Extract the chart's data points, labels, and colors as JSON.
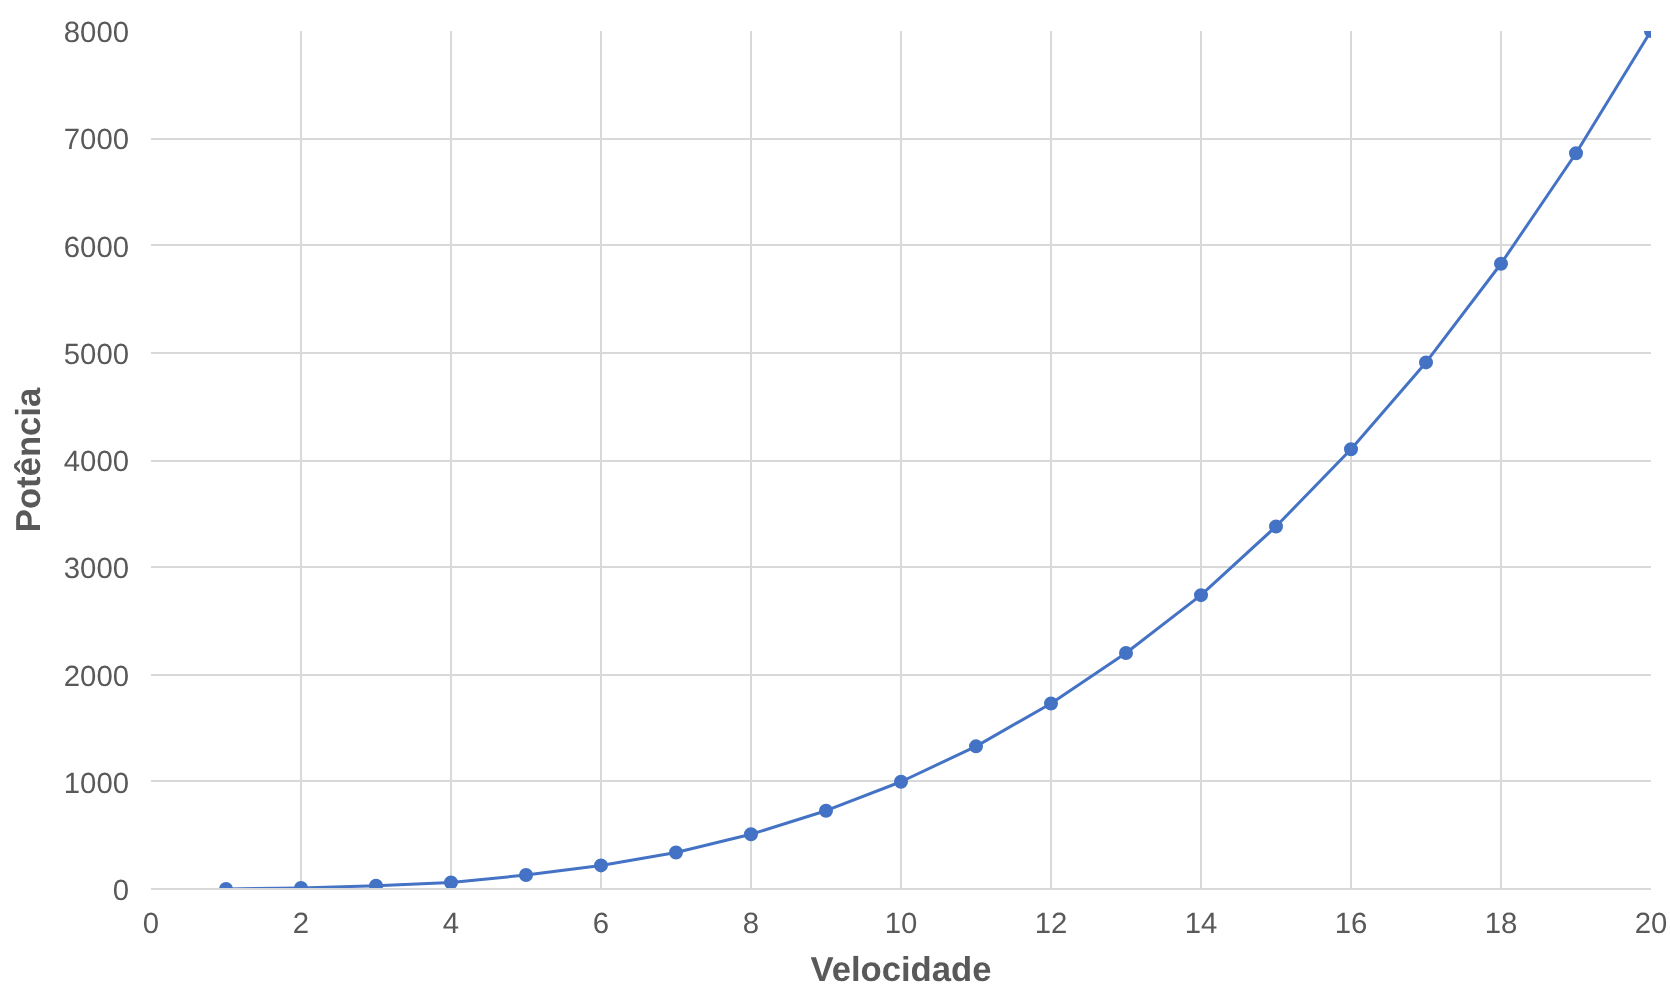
{
  "chart_data": {
    "type": "line",
    "xlabel": "Velocidade",
    "ylabel": "Potência",
    "x": [
      1,
      2,
      3,
      4,
      5,
      6,
      7,
      8,
      9,
      10,
      11,
      12,
      13,
      14,
      15,
      16,
      17,
      18,
      19,
      20
    ],
    "series": [
      {
        "color": "#4472c4",
        "values": [
          0,
          10,
          30,
          60,
          130,
          220,
          340,
          510,
          730,
          1000,
          1330,
          1730,
          2200,
          2740,
          3380,
          4100,
          4910,
          5830,
          6860,
          8000
        ]
      }
    ],
    "xlim": [
      0,
      20
    ],
    "xticks": [
      0,
      2,
      4,
      6,
      8,
      10,
      12,
      14,
      16,
      18,
      20
    ],
    "ylim": [
      0,
      8000
    ],
    "yticks": [
      0,
      1000,
      2000,
      3000,
      4000,
      5000,
      6000,
      7000,
      8000
    ],
    "grid": true,
    "marker": "circle",
    "line_style": "solid"
  }
}
